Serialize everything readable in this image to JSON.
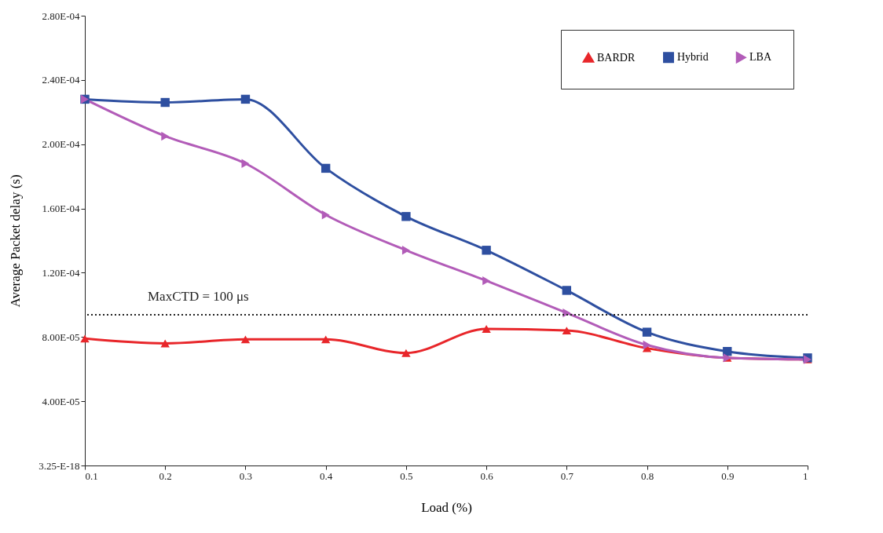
{
  "chart_data": {
    "type": "line",
    "xlabel": "Load (%)",
    "ylabel": "Average Packet delay (s)",
    "x": [
      0.1,
      0.2,
      0.3,
      0.4,
      0.5,
      0.6,
      0.7,
      0.8,
      0.9,
      1
    ],
    "series": [
      {
        "name": "BARDR",
        "color": "#e8262a",
        "marker": "triangle",
        "values": [
          7.9e-05,
          7.6e-05,
          7.85e-05,
          7.85e-05,
          7e-05,
          8.5e-05,
          8.4e-05,
          7.3e-05,
          6.7e-05,
          6.6e-05
        ]
      },
      {
        "name": "Hybrid",
        "color": "#2e4fa0",
        "marker": "square",
        "values": [
          0.000228,
          0.000226,
          0.000228,
          0.000185,
          0.000155,
          0.000134,
          0.000109,
          8.3e-05,
          7.1e-05,
          6.7e-05
        ]
      },
      {
        "name": "LBA",
        "color": "#b25cb8",
        "marker": "triangle-right",
        "values": [
          0.000228,
          0.000205,
          0.000188,
          0.000156,
          0.000134,
          0.000115,
          9.5e-05,
          7.5e-05,
          6.7e-05,
          6.6e-05
        ]
      }
    ],
    "xlim": [
      0.1,
      1
    ],
    "xticks": [
      0.1,
      0.2,
      0.3,
      0.4,
      0.5,
      0.6,
      0.7,
      0.8,
      0.9,
      1
    ],
    "ylim": [
      0,
      0.00028
    ],
    "yticks": [
      {
        "value": 0,
        "label": "3.25-E-18"
      },
      {
        "value": 4e-05,
        "label": "4.00E-05"
      },
      {
        "value": 8e-05,
        "label": "8.00E-05"
      },
      {
        "value": 0.00012,
        "label": "1.20E-04"
      },
      {
        "value": 0.00016,
        "label": "1.60E-04"
      },
      {
        "value": 0.0002,
        "label": "2.00E-04"
      },
      {
        "value": 0.00024,
        "label": "2.40E-04"
      },
      {
        "value": 0.00028,
        "label": "2.80E-04"
      }
    ],
    "ref_lines": [
      {
        "axis": "y",
        "value": 9.38e-05,
        "color": "#222222",
        "line_style": "dotted"
      }
    ],
    "annotations": [
      "MaxCTD = 100 μs"
    ],
    "legend": "top right",
    "grid": false,
    "line_style": "solid"
  }
}
